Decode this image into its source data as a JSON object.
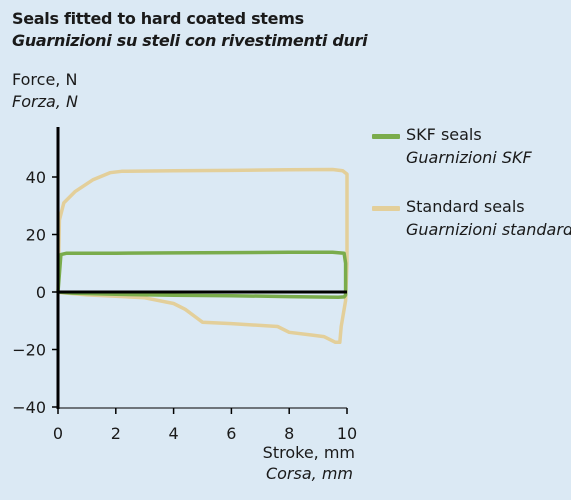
{
  "chart_data": {
    "type": "line",
    "title": "Seals fitted to hard coated stems",
    "subtitle": "Guarnizioni su steli con rivestimenti duri",
    "ylabel": "Force, N",
    "ylabel_it": "Forza, N",
    "xlabel": "Stroke, mm",
    "xlabel_it": "Corsa, mm",
    "xlim": [
      0,
      10
    ],
    "ylim": [
      -40,
      50
    ],
    "xticks": [
      "0",
      "2",
      "4",
      "6",
      "8",
      "10"
    ],
    "yticks": [
      "-40",
      "-20",
      "0",
      "20",
      "40"
    ],
    "grid": false,
    "legend_position": "right",
    "series": [
      {
        "name": "SKF seals",
        "name_it": "Guarnizioni SKF",
        "color": "#7aac4c",
        "x": [
          0.0,
          0.1,
          0.3,
          2,
          4,
          6,
          8,
          9.5,
          9.9,
          9.95,
          9.95,
          9.9,
          9.7,
          8,
          6,
          4,
          2,
          0.5,
          0.1,
          0.0
        ],
        "y": [
          0,
          13,
          13.5,
          13.5,
          13.6,
          13.7,
          13.8,
          13.8,
          13.5,
          10,
          -1,
          -1.7,
          -1.8,
          -1.6,
          -1.3,
          -1.1,
          -0.8,
          -0.4,
          -0.1,
          0
        ]
      },
      {
        "name": "Standard seals",
        "name_it": "Guarnizioni standard",
        "color": "#e3cf9a",
        "x": [
          0.0,
          0.05,
          0.2,
          0.6,
          1.2,
          1.8,
          2.2,
          4,
          6,
          8,
          9.5,
          9.85,
          10.0,
          10.0,
          9.95,
          9.8,
          9.75,
          9.6,
          9.2,
          8.8,
          8.0,
          7.6,
          6.0,
          5.0,
          4.8,
          4.4,
          4.0,
          3.0,
          2.0,
          1.0,
          0.4,
          0.1,
          0.0
        ],
        "y": [
          0,
          25,
          31,
          35,
          39,
          41.5,
          42,
          42.2,
          42.3,
          42.5,
          42.6,
          42.2,
          41,
          10,
          -3,
          -12,
          -17.5,
          -17.5,
          -15.5,
          -15,
          -14,
          -12,
          -11,
          -10.5,
          -9,
          -6,
          -4,
          -2,
          -1.5,
          -1,
          -0.5,
          -0.2,
          0
        ]
      }
    ]
  }
}
